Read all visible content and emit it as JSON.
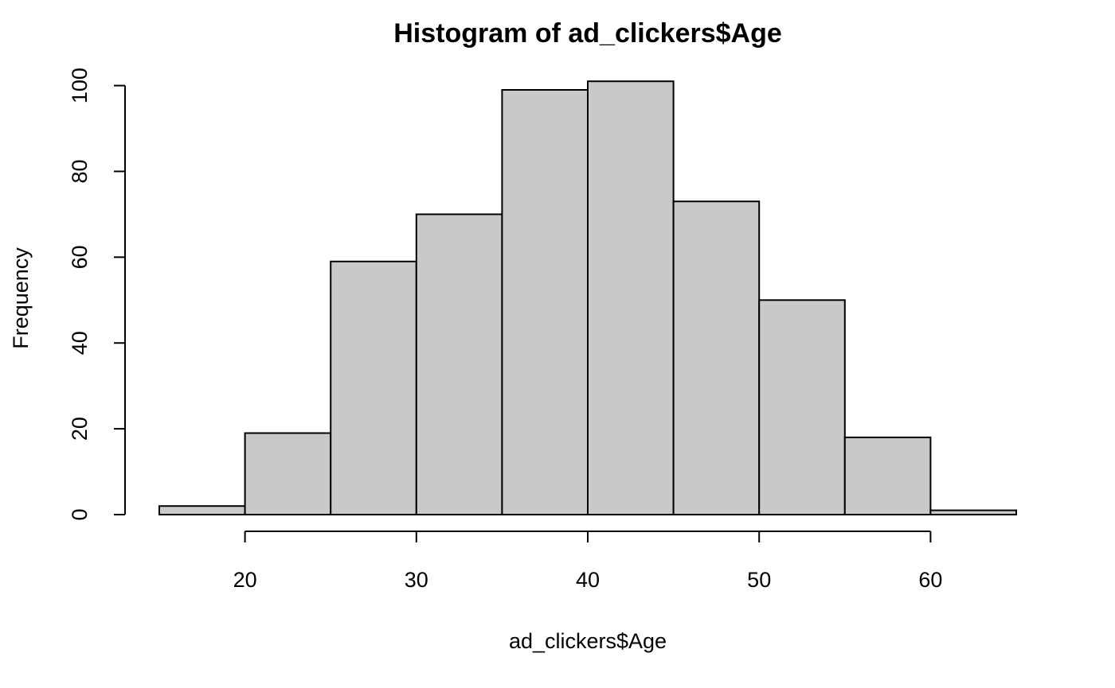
{
  "chart_data": {
    "type": "bar",
    "subtype": "histogram",
    "title": "Histogram of ad_clickers$Age",
    "xlabel": "ad_clickers$Age",
    "ylabel": "Frequency",
    "bins": [
      {
        "start": 15,
        "end": 20,
        "count": 2
      },
      {
        "start": 20,
        "end": 25,
        "count": 19
      },
      {
        "start": 25,
        "end": 30,
        "count": 59
      },
      {
        "start": 30,
        "end": 35,
        "count": 70
      },
      {
        "start": 35,
        "end": 40,
        "count": 99
      },
      {
        "start": 40,
        "end": 45,
        "count": 101
      },
      {
        "start": 45,
        "end": 50,
        "count": 73
      },
      {
        "start": 50,
        "end": 55,
        "count": 50
      },
      {
        "start": 55,
        "end": 60,
        "count": 18
      },
      {
        "start": 60,
        "end": 65,
        "count": 1
      }
    ],
    "xlim": [
      15,
      65
    ],
    "ylim": [
      0,
      101
    ],
    "xticks": [
      20,
      30,
      40,
      50,
      60
    ],
    "yticks": [
      0,
      20,
      40,
      60,
      80,
      100
    ],
    "bar_color": "#c9c9c9",
    "edge_color": "#000000",
    "grid": false,
    "legend": "none"
  }
}
